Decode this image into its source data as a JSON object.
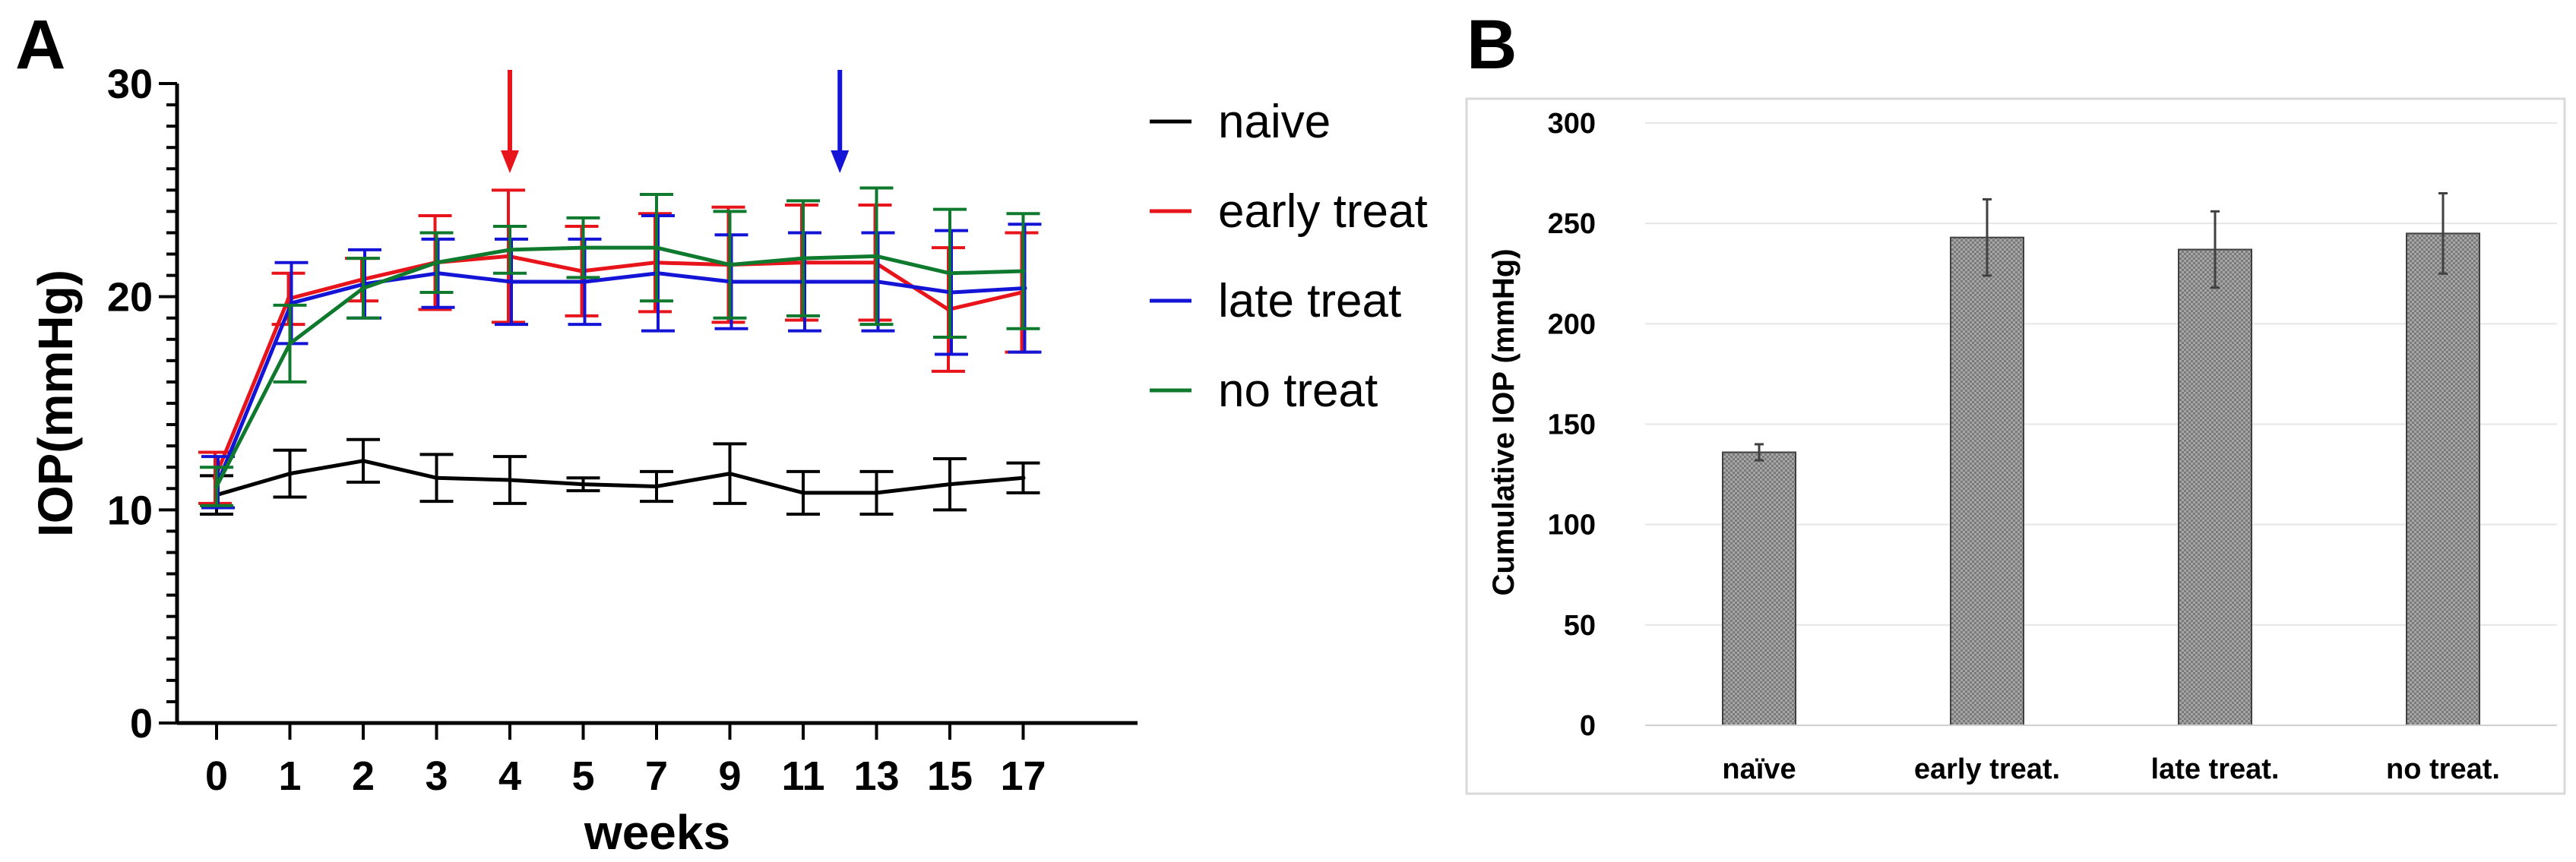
{
  "panels": {
    "a_letter": "A",
    "b_letter": "B"
  },
  "chart_data": [
    {
      "type": "line",
      "panel": "A",
      "title": "",
      "xlabel": "weeks",
      "ylabel": "IOP(mmHg)",
      "x": [
        "0",
        "1",
        "2",
        "3",
        "4",
        "5",
        "7",
        "9",
        "11",
        "13",
        "15",
        "17"
      ],
      "ylim": [
        0,
        30
      ],
      "yticks": [
        0,
        10,
        20,
        30
      ],
      "grid": false,
      "legend_position": "right",
      "series": [
        {
          "name": "naive",
          "color": "#000000",
          "values": [
            10.7,
            11.7,
            12.3,
            11.5,
            11.4,
            11.2,
            11.1,
            11.7,
            10.8,
            10.8,
            11.2,
            11.5
          ],
          "errors": [
            0.9,
            1.1,
            1.0,
            1.1,
            1.1,
            0.3,
            0.7,
            1.4,
            1.0,
            1.0,
            1.2,
            0.7
          ]
        },
        {
          "name": "early treat",
          "color": "#e8141b",
          "values": [
            11.5,
            19.9,
            20.8,
            21.6,
            21.9,
            21.2,
            21.6,
            21.5,
            21.6,
            21.6,
            19.4,
            20.2
          ],
          "errors": [
            1.2,
            1.2,
            1.0,
            2.2,
            3.1,
            2.1,
            2.3,
            2.7,
            2.7,
            2.7,
            2.9,
            2.8
          ]
        },
        {
          "name": "late treat",
          "color": "#1414d6",
          "values": [
            11.3,
            19.7,
            20.6,
            21.1,
            20.7,
            20.7,
            21.1,
            20.7,
            20.7,
            20.7,
            20.2,
            20.4
          ],
          "errors": [
            1.2,
            1.9,
            1.6,
            1.6,
            2.0,
            2.0,
            2.7,
            2.2,
            2.3,
            2.3,
            2.9,
            3.0
          ]
        },
        {
          "name": "no treat",
          "color": "#0f7a2e",
          "values": [
            11.1,
            17.8,
            20.4,
            21.6,
            22.2,
            22.3,
            22.3,
            21.5,
            21.8,
            21.9,
            21.1,
            21.2
          ],
          "errors": [
            0.9,
            1.8,
            1.4,
            1.4,
            1.1,
            1.4,
            2.5,
            2.5,
            2.7,
            3.2,
            3.0,
            2.7
          ]
        }
      ],
      "annotations": [
        {
          "type": "arrow",
          "x_category": "4",
          "color": "#e8141b"
        },
        {
          "type": "arrow",
          "x_category": "12",
          "color": "#1414d6"
        }
      ]
    },
    {
      "type": "bar",
      "panel": "B",
      "title": "",
      "xlabel": "",
      "ylabel": "Cumulative IOP (mmHg)",
      "categories": [
        "naïve",
        "early treat.",
        "late treat.",
        "no treat."
      ],
      "values": [
        136,
        243,
        237,
        245
      ],
      "errors": [
        4,
        19,
        19,
        20
      ],
      "ylim": [
        0,
        300
      ],
      "yticks": [
        0,
        50,
        100,
        150,
        200,
        250,
        300
      ],
      "grid": true,
      "bar_color": "#8a8a8a"
    }
  ]
}
